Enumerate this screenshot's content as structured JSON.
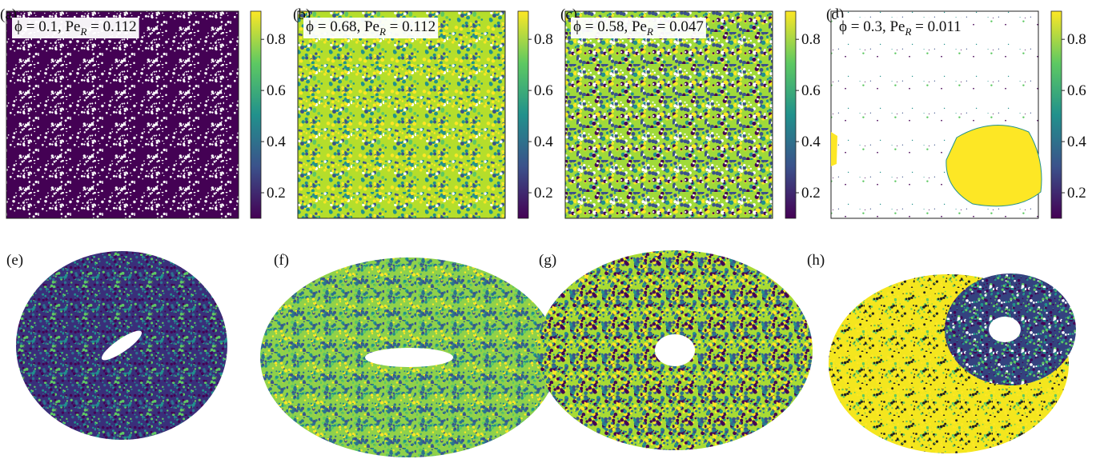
{
  "panels": [
    {
      "label": "(a)",
      "annotation": {
        "pre": "ϕ = 0.1, Pe",
        "sub": "R",
        "post": " = 0.112"
      },
      "colorbar": {
        "lim": [
          0.1,
          0.91
        ],
        "ticks": [
          0.2,
          0.4,
          0.6,
          0.8
        ]
      }
    },
    {
      "label": "(b)",
      "annotation": {
        "pre": "ϕ = 0.68, Pe",
        "sub": "R",
        "post": " = 0.112"
      },
      "colorbar": {
        "lim": [
          0.1,
          0.91
        ],
        "ticks": [
          0.2,
          0.4,
          0.6,
          0.8
        ]
      }
    },
    {
      "label": "(c)",
      "annotation": {
        "pre": "ϕ = 0.58, Pe",
        "sub": "R",
        "post": " = 0.047"
      },
      "colorbar": {
        "lim": [
          0.1,
          0.91
        ],
        "ticks": [
          0.2,
          0.4,
          0.6,
          0.8
        ]
      }
    },
    {
      "label": "(d)",
      "annotation": {
        "pre": "ϕ = 0.3, Pe",
        "sub": "R",
        "post": " = 0.011"
      },
      "colorbar": {
        "lim": [
          0.1,
          0.91
        ],
        "ticks": [
          0.2,
          0.4,
          0.6,
          0.8
        ]
      }
    }
  ],
  "tori": [
    {
      "label": "(e)"
    },
    {
      "label": "(f)"
    },
    {
      "label": "(g)"
    },
    {
      "label": "(h)"
    }
  ]
}
